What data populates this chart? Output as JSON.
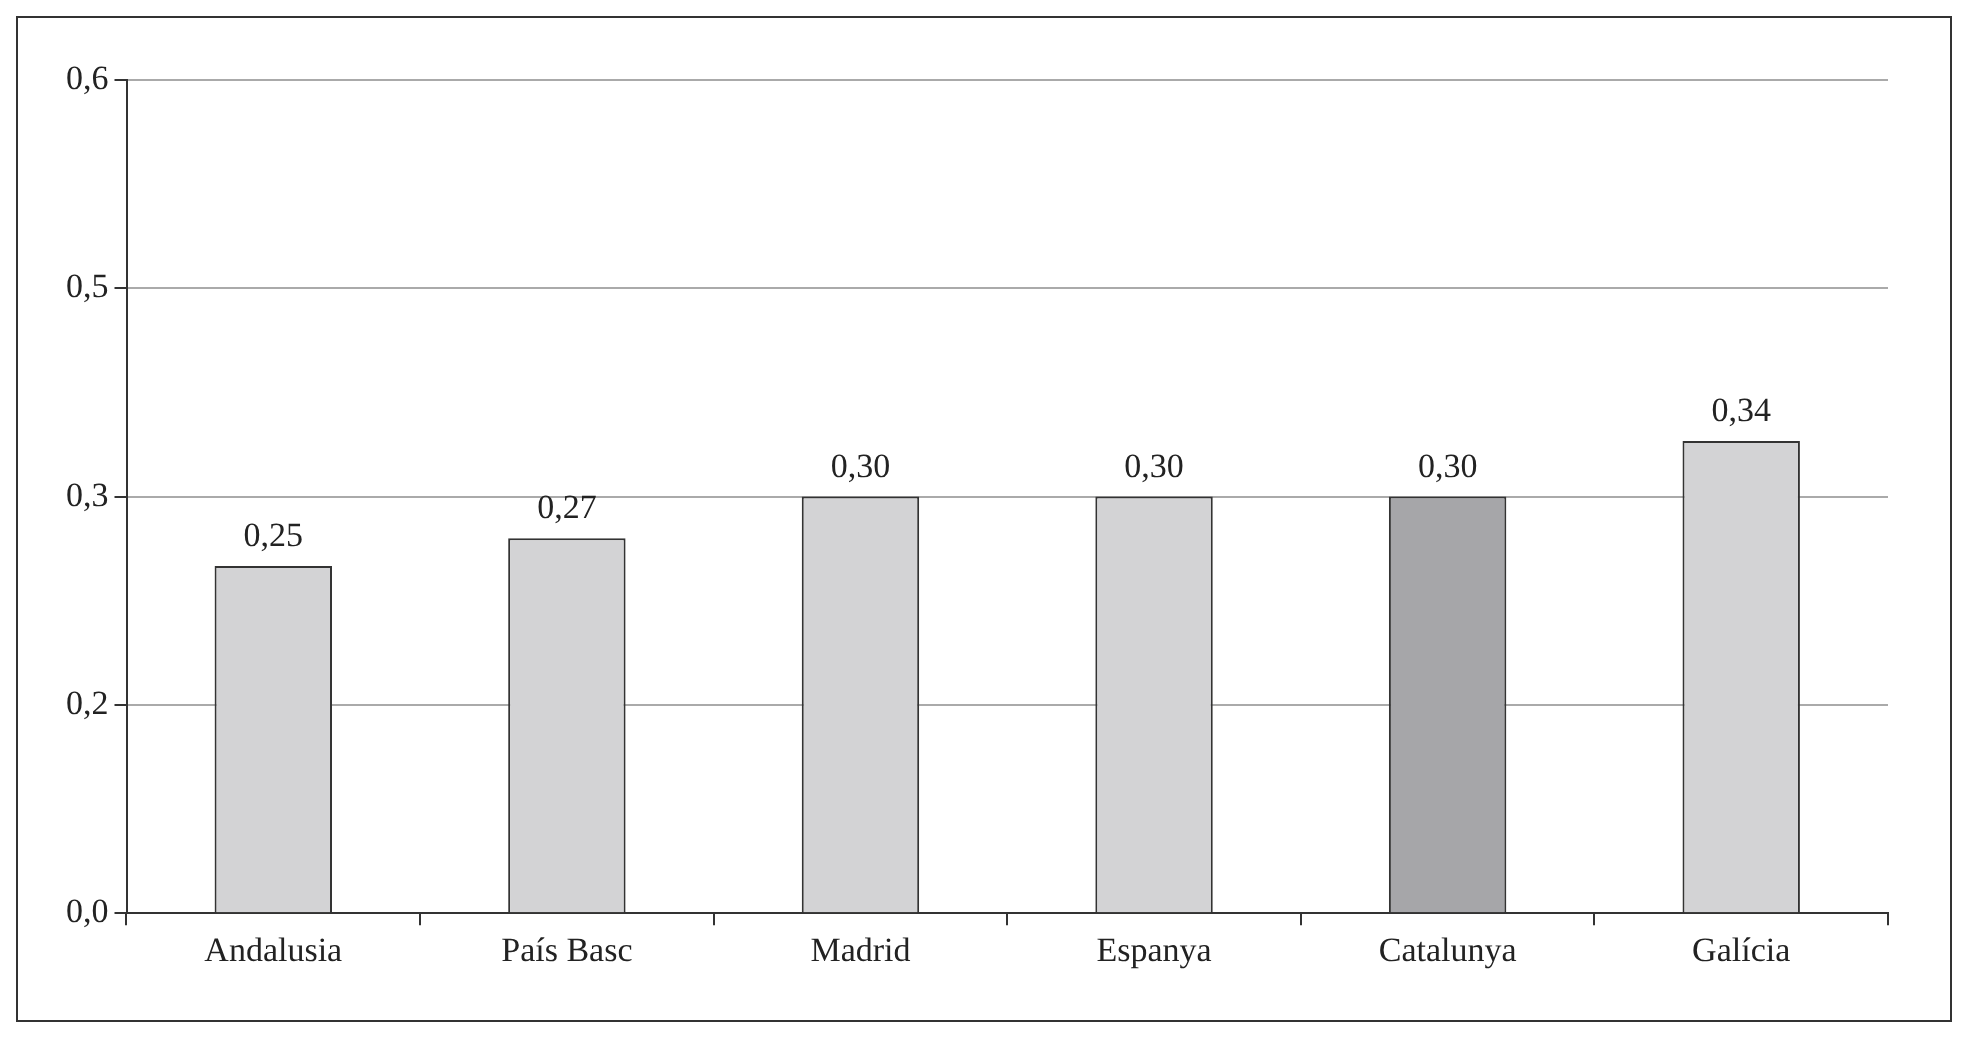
{
  "chart_data": {
    "type": "bar",
    "categories": [
      "Andalusia",
      "País Basc",
      "Madrid",
      "Espanya",
      "Catalunya",
      "Galícia"
    ],
    "values": [
      0.25,
      0.27,
      0.3,
      0.3,
      0.3,
      0.34
    ],
    "colors": [
      "#d3d3d5",
      "#d3d3d5",
      "#d3d3d5",
      "#d3d3d5",
      "#a6a6a9",
      "#d3d3d5"
    ],
    "value_labels": [
      "0,25",
      "0,27",
      "0,30",
      "0,30",
      "0,30",
      "0,34"
    ],
    "ylim": [
      0,
      0.6
    ],
    "yticks": [
      {
        "value": 0,
        "label": "0,0"
      },
      {
        "value": 0.15,
        "label": "0,2"
      },
      {
        "value": 0.3,
        "label": "0,3"
      },
      {
        "value": 0.45,
        "label": "0,5"
      },
      {
        "value": 0.6,
        "label": "0,6"
      }
    ],
    "grid": "y",
    "legend": false
  }
}
